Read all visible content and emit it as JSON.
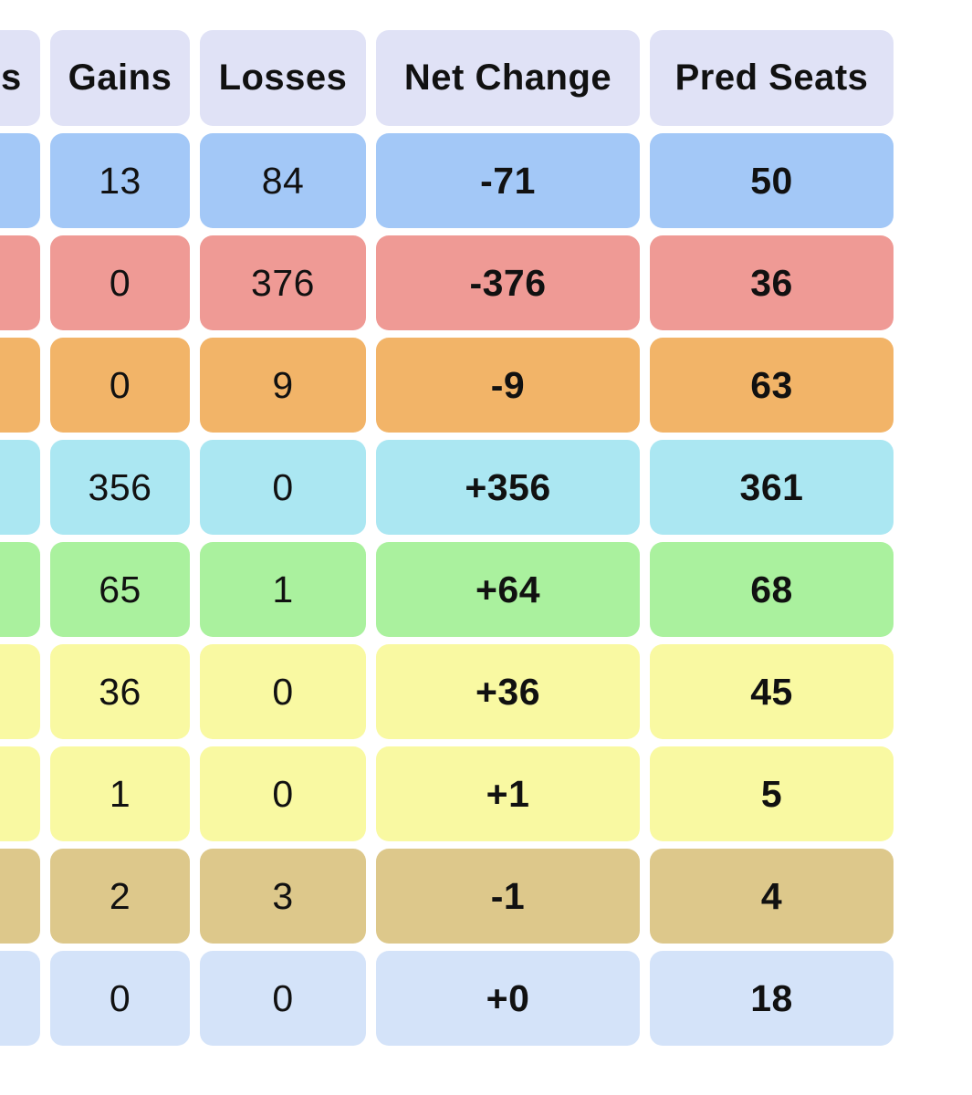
{
  "table": {
    "partial_left_column": {
      "header_fragment": "s"
    },
    "columns": [
      {
        "label": "Gains"
      },
      {
        "label": "Losses"
      },
      {
        "label": "Net Change"
      },
      {
        "label": "Pred Seats"
      }
    ],
    "rows": [
      {
        "color": "#a3c8f7",
        "gains": "13",
        "losses": "84",
        "net_change": "-71",
        "pred_seats": "50"
      },
      {
        "color": "#ef9a95",
        "gains": "0",
        "losses": "376",
        "net_change": "-376",
        "pred_seats": "36"
      },
      {
        "color": "#f2b468",
        "gains": "0",
        "losses": "9",
        "net_change": "-9",
        "pred_seats": "63"
      },
      {
        "color": "#abe7f2",
        "gains": "356",
        "losses": "0",
        "net_change": "+356",
        "pred_seats": "361"
      },
      {
        "color": "#aaf19e",
        "gains": "65",
        "losses": "1",
        "net_change": "+64",
        "pred_seats": "68"
      },
      {
        "color": "#f9f9a2",
        "gains": "36",
        "losses": "0",
        "net_change": "+36",
        "pred_seats": "45"
      },
      {
        "color": "#f9f9a2",
        "gains": "1",
        "losses": "0",
        "net_change": "+1",
        "pred_seats": "5"
      },
      {
        "color": "#ddc88b",
        "gains": "2",
        "losses": "3",
        "net_change": "-1",
        "pred_seats": "4"
      },
      {
        "color": "#d4e3f9",
        "gains": "0",
        "losses": "0",
        "net_change": "+0",
        "pred_seats": "18"
      }
    ],
    "colors": {
      "header_bg": "#e0e2f6",
      "page_bg": "#ffffff",
      "text": "#111111"
    }
  }
}
